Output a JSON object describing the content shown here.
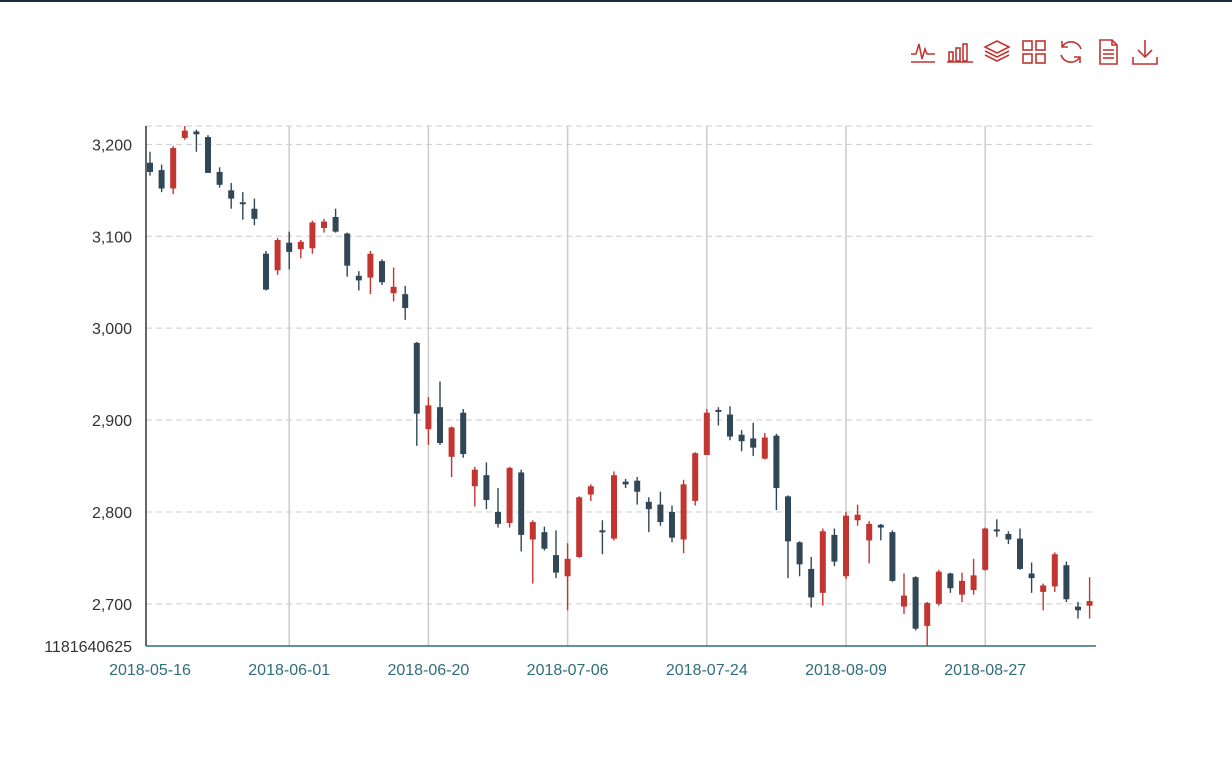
{
  "toolbar": {
    "tools": [
      {
        "name": "line-chart-icon",
        "title": "Line"
      },
      {
        "name": "bar-chart-icon",
        "title": "Bar"
      },
      {
        "name": "stack-icon",
        "title": "Stack"
      },
      {
        "name": "tiled-icon",
        "title": "Tiled"
      },
      {
        "name": "refresh-icon",
        "title": "Restore"
      },
      {
        "name": "data-view-icon",
        "title": "Data View"
      },
      {
        "name": "download-icon",
        "title": "Save as Image"
      }
    ],
    "color": "#c23531"
  },
  "chart_data": {
    "type": "candlestick",
    "title": "",
    "xlabel": "",
    "ylabel": "",
    "ylim": [
      2654.1181640625,
      3220
    ],
    "y_ticks": [
      2700,
      2800,
      2900,
      3000,
      3100,
      3200
    ],
    "y_tick_labels": [
      "2,700",
      "2,800",
      "2,900",
      "3,000",
      "3,100",
      "3,200"
    ],
    "y_min_label": "1181640625",
    "x_tick_labels": [
      "2018-05-16",
      "2018-06-01",
      "2018-06-20",
      "2018-07-06",
      "2018-07-24",
      "2018-08-09",
      "2018-08-27"
    ],
    "x_tick_indices": [
      0,
      12,
      24,
      36,
      48,
      60,
      72
    ],
    "grid": true,
    "colors": {
      "up": "#c23531",
      "down": "#314656",
      "axis": "#2f6e79",
      "grid": "#cccccc"
    },
    "series": [
      {
        "name": "",
        "ohlc": [
          [
            3180,
            3170,
            3192,
            3166
          ],
          [
            3172,
            3152,
            3178,
            3148
          ],
          [
            3152,
            3196,
            3198,
            3146
          ],
          [
            3207,
            3215,
            3220,
            3205
          ],
          [
            3214,
            3211,
            3216,
            3192
          ],
          [
            3208,
            3169,
            3210,
            3169
          ],
          [
            3170,
            3156,
            3175,
            3153
          ],
          [
            3150,
            3141,
            3158,
            3130
          ],
          [
            3137,
            3135,
            3148,
            3118
          ],
          [
            3130,
            3119,
            3141,
            3112
          ],
          [
            3081,
            3042,
            3084,
            3041
          ],
          [
            3063,
            3096,
            3098,
            3058
          ],
          [
            3093,
            3083,
            3105,
            3064
          ],
          [
            3086,
            3094,
            3096,
            3076
          ],
          [
            3087,
            3115,
            3117,
            3081
          ],
          [
            3109,
            3116,
            3119,
            3104
          ],
          [
            3121,
            3105,
            3130,
            3104
          ],
          [
            3103,
            3068,
            3104,
            3056
          ],
          [
            3057,
            3052,
            3062,
            3041
          ],
          [
            3055,
            3081,
            3084,
            3037
          ],
          [
            3073,
            3050,
            3075,
            3047
          ],
          [
            3038,
            3045,
            3066,
            3029
          ],
          [
            3037,
            3022,
            3046,
            3009
          ],
          [
            2984,
            2907,
            2985,
            2872
          ],
          [
            2890,
            2916,
            2925,
            2873
          ],
          [
            2914,
            2875,
            2942,
            2873
          ],
          [
            2860,
            2892,
            2893,
            2838
          ],
          [
            2908,
            2863,
            2912,
            2859
          ],
          [
            2828,
            2846,
            2849,
            2806
          ],
          [
            2840,
            2813,
            2854,
            2803
          ],
          [
            2800,
            2787,
            2826,
            2783
          ],
          [
            2788,
            2848,
            2849,
            2783
          ],
          [
            2843,
            2775,
            2846,
            2757
          ],
          [
            2770,
            2789,
            2791,
            2722
          ],
          [
            2778,
            2760,
            2784,
            2758
          ],
          [
            2753,
            2734,
            2780,
            2728
          ],
          [
            2730,
            2749,
            2766,
            2693
          ],
          [
            2751,
            2816,
            2817,
            2750
          ],
          [
            2819,
            2828,
            2830,
            2812
          ],
          [
            2780,
            2779,
            2791,
            2754
          ],
          [
            2771,
            2840,
            2844,
            2769
          ],
          [
            2833,
            2830,
            2836,
            2826
          ],
          [
            2834,
            2822,
            2838,
            2808
          ],
          [
            2811,
            2803,
            2816,
            2778
          ],
          [
            2808,
            2789,
            2822,
            2785
          ],
          [
            2800,
            2772,
            2807,
            2767
          ],
          [
            2770,
            2830,
            2835,
            2755
          ],
          [
            2812,
            2864,
            2865,
            2807
          ],
          [
            2862,
            2908,
            2912,
            2862
          ],
          [
            2911,
            2909,
            2914,
            2894
          ],
          [
            2906,
            2882,
            2915,
            2878
          ],
          [
            2884,
            2877,
            2889,
            2866
          ],
          [
            2880,
            2870,
            2897,
            2861
          ],
          [
            2858,
            2881,
            2886,
            2857
          ],
          [
            2883,
            2826,
            2885,
            2802
          ],
          [
            2817,
            2768,
            2818,
            2728
          ],
          [
            2767,
            2743,
            2768,
            2730
          ],
          [
            2738,
            2707,
            2751,
            2696
          ],
          [
            2712,
            2779,
            2782,
            2698
          ],
          [
            2775,
            2746,
            2782,
            2741
          ],
          [
            2730,
            2796,
            2800,
            2727
          ],
          [
            2791,
            2797,
            2808,
            2785
          ],
          [
            2769,
            2787,
            2790,
            2744
          ],
          [
            2786,
            2783,
            2787,
            2769
          ],
          [
            2778,
            2725,
            2780,
            2724
          ],
          [
            2697,
            2709,
            2733,
            2689
          ],
          [
            2729,
            2673,
            2730,
            2671
          ],
          [
            2676,
            2701,
            2702,
            2654
          ],
          [
            2700,
            2735,
            2737,
            2698
          ],
          [
            2733,
            2717,
            2734,
            2712
          ],
          [
            2710,
            2725,
            2734,
            2702
          ],
          [
            2715,
            2731,
            2749,
            2710
          ],
          [
            2737,
            2782,
            2783,
            2736
          ],
          [
            2781,
            2780,
            2792,
            2773
          ],
          [
            2776,
            2770,
            2779,
            2765
          ],
          [
            2771,
            2738,
            2782,
            2737
          ],
          [
            2733,
            2728,
            2745,
            2712
          ],
          [
            2713,
            2720,
            2722,
            2693
          ],
          [
            2719,
            2754,
            2756,
            2713
          ],
          [
            2742,
            2705,
            2746,
            2702
          ],
          [
            2697,
            2693,
            2702,
            2684
          ],
          [
            2698,
            2703,
            2729,
            2684
          ]
        ]
      }
    ]
  }
}
